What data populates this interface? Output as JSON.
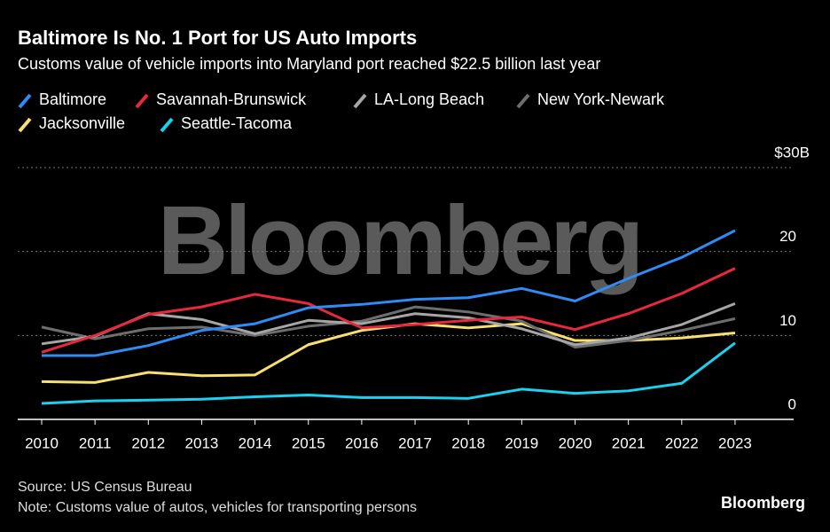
{
  "chart_data": {
    "type": "line",
    "title": "Baltimore Is No. 1 Port for US Auto Imports",
    "subtitle": "Customs value of vehicle imports into Maryland port reached $22.5 billion last year",
    "watermark": "Bloomberg",
    "source": "Source: US Census Bureau",
    "note": "Note: Customs value of autos, vehicles for transporting persons",
    "logo": "Bloomberg",
    "categories": [
      "2010",
      "2011",
      "2012",
      "2013",
      "2014",
      "2015",
      "2016",
      "2017",
      "2018",
      "2019",
      "2020",
      "2021",
      "2022",
      "2023"
    ],
    "series": [
      {
        "name": "Baltimore",
        "color": "#2f8bf5",
        "values": [
          7.6,
          7.6,
          8.8,
          10.6,
          11.4,
          13.3,
          13.7,
          14.3,
          14.5,
          15.6,
          14.1,
          16.8,
          19.3,
          22.5
        ]
      },
      {
        "name": "Savannah-Brunswick",
        "color": "#e8283c",
        "values": [
          8.0,
          10.0,
          12.5,
          13.4,
          14.9,
          13.8,
          10.9,
          11.3,
          11.8,
          12.2,
          10.7,
          12.6,
          15.0,
          18.0
        ]
      },
      {
        "name": "LA-Long Beach",
        "color": "#a6a6a6",
        "values": [
          9.0,
          9.9,
          12.6,
          11.9,
          10.2,
          11.8,
          11.4,
          12.6,
          12.1,
          10.8,
          8.9,
          9.7,
          11.3,
          13.8
        ]
      },
      {
        "name": "New York-Newark",
        "color": "#6e6e6e",
        "values": [
          11.0,
          9.6,
          10.8,
          11.0,
          10.0,
          11.1,
          11.7,
          13.4,
          12.8,
          11.7,
          8.6,
          9.4,
          10.6,
          12.0
        ]
      },
      {
        "name": "Jacksonville",
        "color": "#f7e06e",
        "values": [
          4.5,
          4.4,
          5.6,
          5.2,
          5.3,
          8.9,
          10.6,
          11.4,
          10.9,
          11.4,
          9.4,
          9.4,
          9.7,
          10.3
        ]
      },
      {
        "name": "Seattle-Tacoma",
        "color": "#1ad2f0",
        "values": [
          1.9,
          2.2,
          2.3,
          2.4,
          2.7,
          2.9,
          2.6,
          2.6,
          2.5,
          3.6,
          3.1,
          3.4,
          4.3,
          9.1
        ]
      }
    ],
    "ylim": [
      0,
      30
    ],
    "yticks": [
      0,
      10,
      20,
      {
        "value": 30,
        "label": "$30B"
      }
    ],
    "grid": true
  }
}
